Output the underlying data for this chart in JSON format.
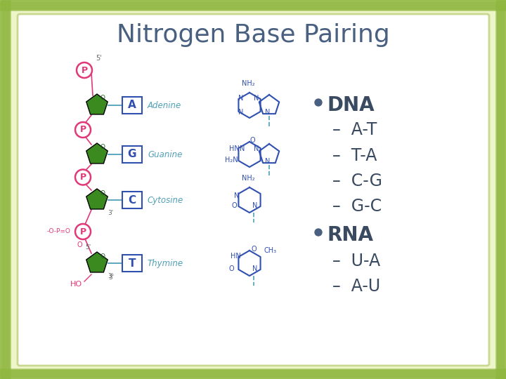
{
  "title": "Nitrogen Base Pairing",
  "title_color": "#4a6080",
  "title_fontsize": 26,
  "background_outer": "#eef5c8",
  "background_inner": "#ffffff",
  "border_color": "#aac855",
  "bullet_color": "#4a6080",
  "text_color": "#3a4a60",
  "bullet_items": [
    {
      "text": "DNA",
      "level": 0
    },
    {
      "text": "A-T",
      "level": 1
    },
    {
      "text": "T-A",
      "level": 1
    },
    {
      "text": "C-G",
      "level": 1
    },
    {
      "text": "G-C",
      "level": 1
    },
    {
      "text": "RNA",
      "level": 0
    },
    {
      "text": "U-A",
      "level": 1
    },
    {
      "text": "A-U",
      "level": 1
    }
  ],
  "green_color": "#3a8a20",
  "pink_color": "#e03878",
  "blue_color": "#3050b0",
  "cyan_color": "#50a0b8",
  "figsize": [
    7.2,
    5.4
  ],
  "dpi": 100
}
